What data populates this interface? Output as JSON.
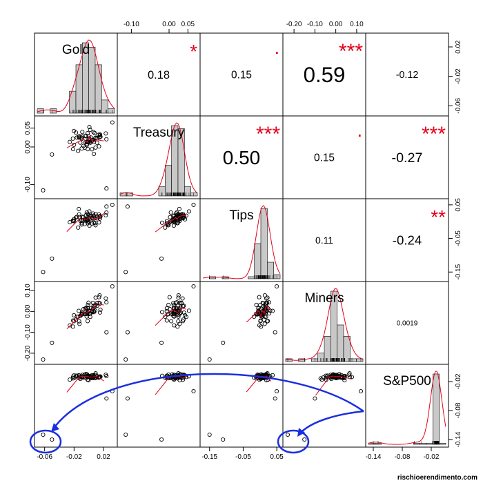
{
  "chart_data": {
    "type": "scatter-matrix",
    "variables": [
      "Gold",
      "Treasury",
      "Tips",
      "Miners",
      "S&P500"
    ],
    "correlations": [
      {
        "row": 0,
        "col": 1,
        "value": "0.18",
        "stars": "*"
      },
      {
        "row": 0,
        "col": 2,
        "value": "0.15",
        "stars": "·"
      },
      {
        "row": 0,
        "col": 3,
        "value": "0.59",
        "stars": "***"
      },
      {
        "row": 0,
        "col": 4,
        "value": "-0.12",
        "stars": ""
      },
      {
        "row": 1,
        "col": 2,
        "value": "0.50",
        "stars": "***"
      },
      {
        "row": 1,
        "col": 3,
        "value": "0.15",
        "stars": "·"
      },
      {
        "row": 1,
        "col": 4,
        "value": "-0.27",
        "stars": "***"
      },
      {
        "row": 2,
        "col": 3,
        "value": "0.11",
        "stars": ""
      },
      {
        "row": 2,
        "col": 4,
        "value": "-0.24",
        "stars": "**"
      },
      {
        "row": 3,
        "col": 4,
        "value": "0.0019",
        "stars": ""
      }
    ],
    "ranges": [
      [
        -0.07,
        0.035
      ],
      [
        -0.13,
        0.075
      ],
      [
        -0.17,
        0.06
      ],
      [
        -0.24,
        0.13
      ],
      [
        -0.15,
        0.01
      ]
    ],
    "axes": {
      "top": [
        {
          "col": 1,
          "ticks": [
            -0.1,
            0.0,
            0.05
          ],
          "labels": [
            "-0.10",
            "0.00",
            "0.05"
          ]
        },
        {
          "col": 3,
          "ticks": [
            -0.2,
            -0.1,
            0.0,
            0.1
          ],
          "labels": [
            "-0.20",
            "-0.10",
            "0.00",
            "0.10"
          ]
        }
      ],
      "bottom": [
        {
          "col": 0,
          "ticks": [
            -0.06,
            -0.02,
            0.02
          ],
          "labels": [
            "-0.06",
            "-0.02",
            "0.02"
          ]
        },
        {
          "col": 2,
          "ticks": [
            -0.15,
            -0.05,
            0.05
          ],
          "labels": [
            "-0.15",
            "-0.05",
            "0.05"
          ]
        },
        {
          "col": 4,
          "ticks": [
            -0.14,
            -0.08,
            -0.02
          ],
          "labels": [
            "-0.14",
            "-0.08",
            "-0.02"
          ]
        }
      ],
      "left": [
        {
          "row": 1,
          "ticks": [
            0.05,
            0.0,
            -0.1
          ],
          "labels": [
            "0.05",
            "0.00",
            "-0.10"
          ]
        },
        {
          "row": 3,
          "ticks": [
            0.1,
            0.0,
            -0.1,
            -0.2
          ],
          "labels": [
            "0.10",
            "0.00",
            "-0.10",
            "-0.20"
          ]
        }
      ],
      "right": [
        {
          "row": 0,
          "ticks": [
            0.02,
            -0.02,
            -0.06
          ],
          "labels": [
            "0.02",
            "-0.02",
            "-0.06"
          ]
        },
        {
          "row": 2,
          "ticks": [
            0.05,
            -0.05,
            -0.15
          ],
          "labels": [
            "0.05",
            "-0.05",
            "-0.15"
          ]
        },
        {
          "row": 4,
          "ticks": [
            -0.02,
            -0.08,
            -0.14
          ],
          "labels": [
            "-0.02",
            "-0.08",
            "-0.14"
          ]
        }
      ]
    },
    "annotations": [
      "Outlier points circled in blue (bottom-left of S&P500 row), with curved arrows from the S&P500 histogram"
    ]
  },
  "credit": "rischioerendimento.com",
  "colors": {
    "stars": "#e4001b",
    "smooth": "#e4001b",
    "annotation": "#1a2fe0",
    "hist": "#c8c8c8"
  }
}
